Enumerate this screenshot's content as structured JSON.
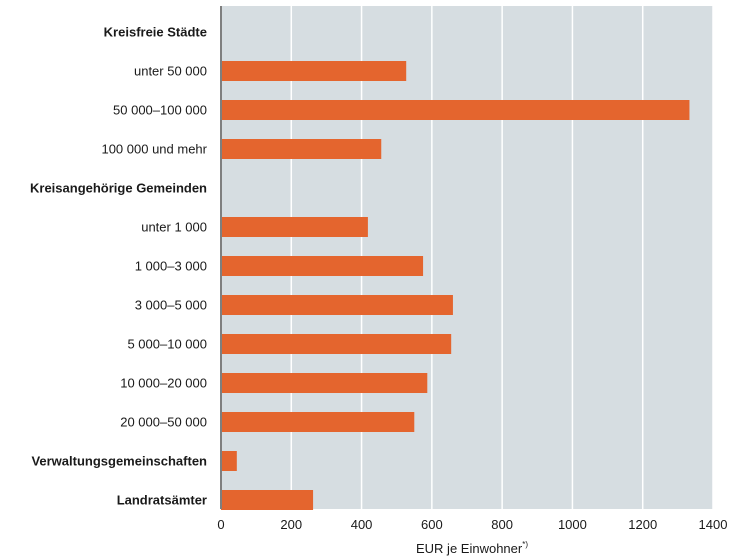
{
  "colors": {
    "bar": "#e4652e",
    "plot_background": "#d6dde1",
    "gridline": "#ffffff",
    "axis_line": "#7f7f7f"
  },
  "chart_data": {
    "type": "bar",
    "orientation": "horizontal",
    "categories": [
      {
        "label": "Kreisfreie Städte",
        "heading": true,
        "value": null
      },
      {
        "label": "unter 50 000",
        "heading": false,
        "value": 527
      },
      {
        "label": "50 000–100 000",
        "heading": false,
        "value": 1333
      },
      {
        "label": "100 000 und mehr",
        "heading": false,
        "value": 456
      },
      {
        "label": "Kreisangehörige Gemeinden",
        "heading": true,
        "value": null
      },
      {
        "label": "unter 1 000",
        "heading": false,
        "value": 418
      },
      {
        "label": "1 000–3 000",
        "heading": false,
        "value": 575
      },
      {
        "label": "3 000–5 000",
        "heading": false,
        "value": 660
      },
      {
        "label": "5 000–10 000",
        "heading": false,
        "value": 655
      },
      {
        "label": "10 000–20 000",
        "heading": false,
        "value": 587
      },
      {
        "label": "20 000–50 000",
        "heading": false,
        "value": 550
      },
      {
        "label": "Verwaltungsgemeinschaften",
        "heading": true,
        "value": 45
      },
      {
        "label": "Landratsämter",
        "heading": true,
        "value": 262
      }
    ],
    "xlim": [
      0,
      1400
    ],
    "xticks": [
      0,
      200,
      400,
      600,
      800,
      1000,
      1200,
      1400
    ],
    "xlabel": "EUR je Einwohner",
    "xlabel_sup": "*)",
    "grid": true
  }
}
